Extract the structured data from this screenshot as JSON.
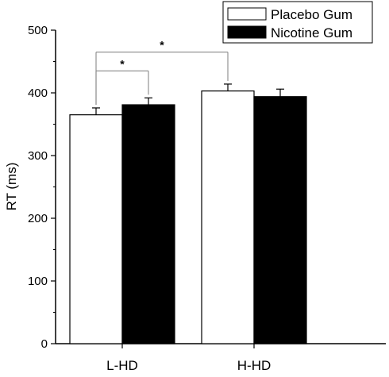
{
  "chart_data": {
    "type": "bar",
    "categories": [
      "L-HD",
      "H-HD"
    ],
    "series": [
      {
        "name": "Placebo Gum",
        "values": [
          365,
          403
        ],
        "error": [
          11,
          11
        ],
        "fill": "#ffffff"
      },
      {
        "name": "Nicotine Gum",
        "values": [
          381,
          394
        ],
        "error": [
          11,
          12
        ],
        "fill": "#000000"
      }
    ],
    "ylabel": "RT (ms)",
    "xlabel": "",
    "ylim": [
      0,
      500
    ],
    "yticks": [
      0,
      100,
      200,
      300,
      400,
      500
    ],
    "legend": {
      "position": "top-right"
    },
    "grid": false,
    "significance": [
      {
        "label": "*",
        "from": {
          "category": 0,
          "series": 0
        },
        "to": {
          "category": 0,
          "series": 1
        },
        "level": 435
      },
      {
        "label": "*",
        "from": {
          "category": 0,
          "series": 0
        },
        "to": {
          "category": 1,
          "series": 0
        },
        "level": 465
      }
    ]
  }
}
